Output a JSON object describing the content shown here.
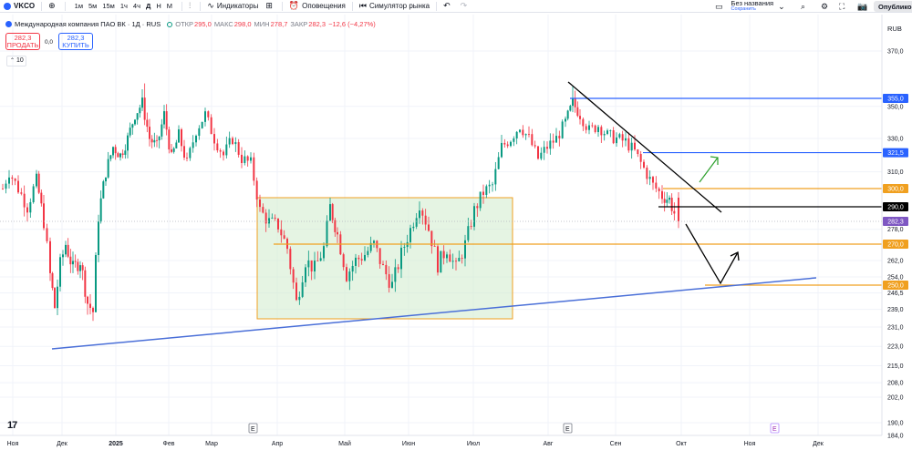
{
  "toolbar": {
    "symbol": "VKCO",
    "timeframes": [
      "1м",
      "5м",
      "15м",
      "1ч",
      "4ч",
      "Д",
      "Н",
      "М"
    ],
    "indicators_label": "Индикаторы",
    "alerts_label": "Оповещения",
    "replay_label": "Симулятор рынка",
    "layout_name": "Без названия",
    "layout_status": "Сохранить",
    "publish_label": "Опубликовать"
  },
  "legend": {
    "title": "Международная компания ПАО ВК · 1Д · RUS",
    "open_label": "ОТКР",
    "open": "295,0",
    "high_label": "МАКС",
    "high": "298,0",
    "low_label": "МИН",
    "low": "278,7",
    "close_label": "ЗАКР",
    "close": "282,3",
    "change": "−12,6 (−4,27%)"
  },
  "trade": {
    "sell_price": "282,3",
    "sell_label": "ПРОДАТЬ",
    "spread": "0,0",
    "buy_price": "282,3",
    "buy_label": "КУПИТЬ",
    "quantity": "10"
  },
  "price_axis": {
    "currency": "RUB",
    "ticks": [
      {
        "label": "370,0",
        "value": 370
      },
      {
        "label": "350,0",
        "value": 350
      },
      {
        "label": "330,0",
        "value": 330
      },
      {
        "label": "310,0",
        "value": 310
      },
      {
        "label": "278,0",
        "value": 278
      },
      {
        "label": "262,0",
        "value": 262
      },
      {
        "label": "254,0",
        "value": 254
      },
      {
        "label": "246,5",
        "value": 246.5
      },
      {
        "label": "239,0",
        "value": 239
      },
      {
        "label": "231,0",
        "value": 231
      },
      {
        "label": "223,0",
        "value": 223
      },
      {
        "label": "215,0",
        "value": 215
      },
      {
        "label": "208,0",
        "value": 208
      },
      {
        "label": "202,0",
        "value": 202
      },
      {
        "label": "190,0",
        "value": 190
      },
      {
        "label": "184,0",
        "value": 184
      }
    ],
    "badges": [
      {
        "label": "355,0",
        "value": 355,
        "color": "#2962ff"
      },
      {
        "label": "321,5",
        "value": 321.5,
        "color": "#2962ff"
      },
      {
        "label": "300,0",
        "value": 300,
        "color": "#f0a020"
      },
      {
        "label": "290,0",
        "value": 290,
        "color": "#000000"
      },
      {
        "label": "282,3",
        "value": 282.3,
        "color": "#7e57c2"
      },
      {
        "label": "270,0",
        "value": 270,
        "color": "#f0a020"
      },
      {
        "label": "250,0",
        "value": 250,
        "color": "#f0a020"
      }
    ]
  },
  "time_axis": {
    "labels": [
      "Ноя",
      "Дек",
      "2025",
      "Фев",
      "Мар",
      "Апр",
      "Май",
      "Июн",
      "Июл",
      "Авг",
      "Сен",
      "Окт",
      "Ноя",
      "Дек"
    ],
    "markers": [
      "E",
      "E",
      "E"
    ]
  },
  "chart_data": {
    "type": "candlestick",
    "title": "Международная компания ПАО ВК · 1Д · RUS",
    "currency": "RUB",
    "last_candle": {
      "open": 295.0,
      "high": 298.0,
      "low": 278.7,
      "close": 282.3
    },
    "horizontal_levels": [
      355.0,
      321.5,
      300.0,
      290.0,
      270.0,
      250.0
    ],
    "consolidation_range": [
      238,
      297
    ],
    "trend": "downtrend since late July, support around 250",
    "colors": {
      "up": "#089981",
      "down": "#f23645",
      "support": "#4a6fd8",
      "level": "#f0a020"
    }
  }
}
